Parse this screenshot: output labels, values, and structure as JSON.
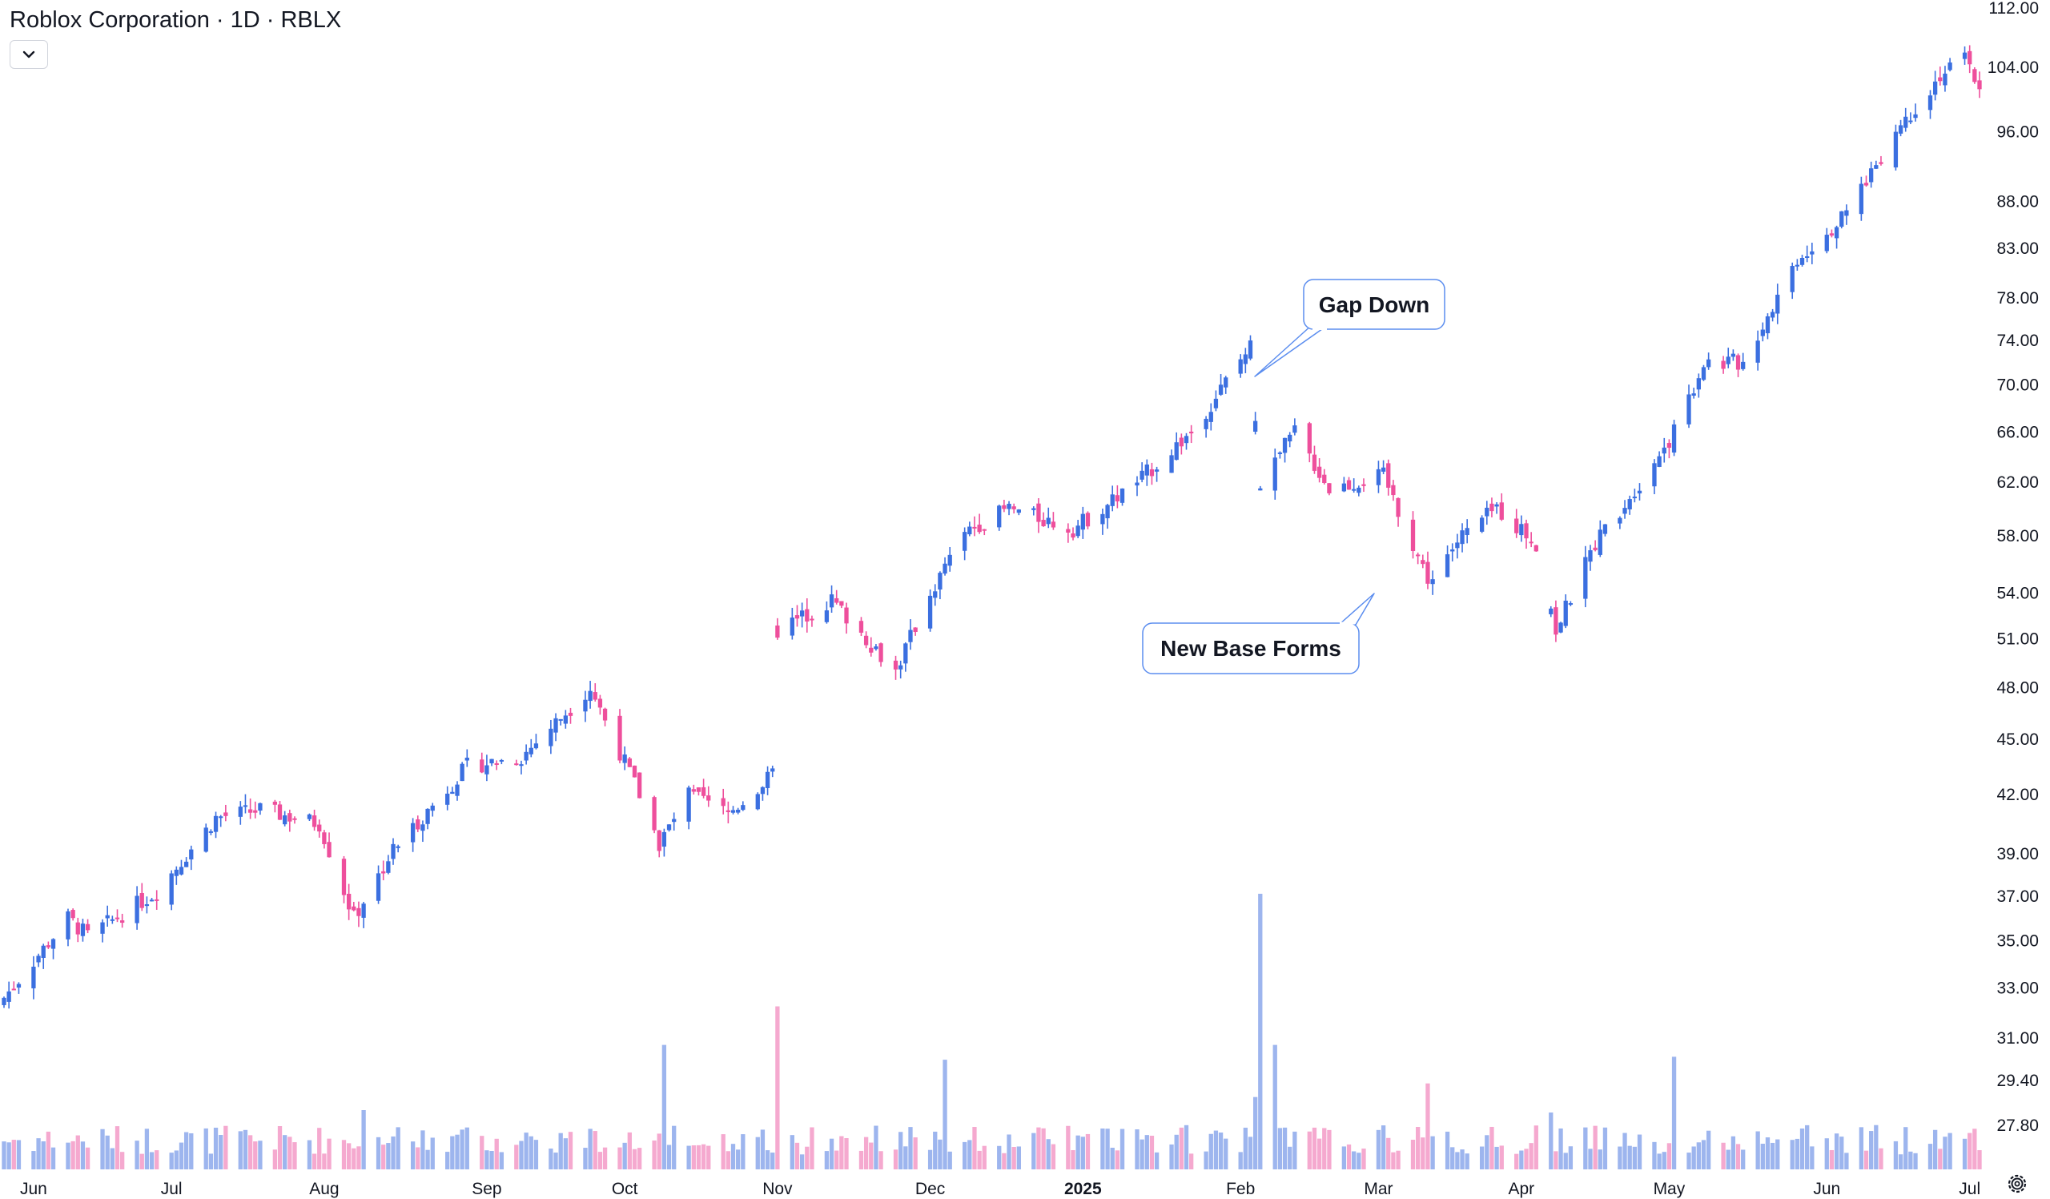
{
  "header": {
    "title": "Roblox Corporation · 1D · RBLX",
    "collapse_icon": "chevron-down-icon",
    "settings_icon": "gear-icon"
  },
  "colors": {
    "up": "#3b6fe0",
    "down": "#ee4f9c",
    "volume_up": "#9db5ee",
    "volume_down": "#f5a9cf",
    "callout_border": "#5b8def",
    "background": "#ffffff"
  },
  "chart_data": {
    "type": "candlestick",
    "symbol": "RBLX",
    "name": "Roblox Corporation",
    "interval": "1D",
    "y_scale": "log",
    "ylim": [
      26.0,
      112.0
    ],
    "y_ticks": [
      "112.00",
      "104.00",
      "96.00",
      "88.00",
      "83.00",
      "78.00",
      "74.00",
      "70.00",
      "66.00",
      "62.00",
      "58.00",
      "54.00",
      "51.00",
      "48.00",
      "45.00",
      "42.00",
      "39.00",
      "37.00",
      "35.00",
      "33.00",
      "31.00",
      "29.40",
      "27.80"
    ],
    "x_ticks": [
      {
        "label": "Jun",
        "date": "2024-06-03",
        "bold": false
      },
      {
        "label": "Jul",
        "date": "2024-07-01",
        "bold": false
      },
      {
        "label": "Aug",
        "date": "2024-08-01",
        "bold": false
      },
      {
        "label": "Sep",
        "date": "2024-09-03",
        "bold": false
      },
      {
        "label": "Oct",
        "date": "2024-10-01",
        "bold": false
      },
      {
        "label": "Nov",
        "date": "2024-11-01",
        "bold": false
      },
      {
        "label": "Dec",
        "date": "2024-12-02",
        "bold": false
      },
      {
        "label": "2025",
        "date": "2025-01-02",
        "bold": true
      },
      {
        "label": "Feb",
        "date": "2025-02-03",
        "bold": false
      },
      {
        "label": "Mar",
        "date": "2025-03-03",
        "bold": false
      },
      {
        "label": "Apr",
        "date": "2025-04-01",
        "bold": false
      },
      {
        "label": "May",
        "date": "2025-05-01",
        "bold": false
      },
      {
        "label": "Jun",
        "date": "2025-06-02",
        "bold": false
      },
      {
        "label": "Jul",
        "date": "2025-07-01",
        "bold": false
      }
    ],
    "price_anchors": [
      [
        "2024-05-28",
        32.6
      ],
      [
        "2024-06-10",
        36.0
      ],
      [
        "2024-06-14",
        35.2
      ],
      [
        "2024-06-28",
        37.2
      ],
      [
        "2024-07-10",
        40.8
      ],
      [
        "2024-07-19",
        41.2
      ],
      [
        "2024-07-31",
        40.5
      ],
      [
        "2024-08-07",
        36.0
      ],
      [
        "2024-08-15",
        39.2
      ],
      [
        "2024-08-30",
        43.5
      ],
      [
        "2024-09-10",
        44.0
      ],
      [
        "2024-09-24",
        48.0
      ],
      [
        "2024-10-04",
        42.0
      ],
      [
        "2024-10-08",
        39.5
      ],
      [
        "2024-10-14",
        42.0
      ],
      [
        "2024-10-22",
        41.0
      ],
      [
        "2024-10-31",
        43.0
      ],
      [
        "2024-11-01",
        51.5
      ],
      [
        "2024-11-12",
        53.5
      ],
      [
        "2024-11-25",
        49.0
      ],
      [
        "2024-12-02",
        54.0
      ],
      [
        "2024-12-10",
        58.5
      ],
      [
        "2024-12-18",
        60.0
      ],
      [
        "2024-12-31",
        58.5
      ],
      [
        "2025-01-13",
        62.0
      ],
      [
        "2025-01-24",
        66.0
      ],
      [
        "2025-02-05",
        73.5
      ],
      [
        "2025-02-07",
        62.0
      ],
      [
        "2025-02-14",
        66.0
      ],
      [
        "2025-02-21",
        61.5
      ],
      [
        "2025-03-04",
        62.5
      ],
      [
        "2025-03-13",
        55.0
      ],
      [
        "2025-03-20",
        58.0
      ],
      [
        "2025-03-27",
        60.0
      ],
      [
        "2025-04-04",
        57.5
      ],
      [
        "2025-04-08",
        51.5
      ],
      [
        "2025-04-16",
        57.5
      ],
      [
        "2025-04-25",
        62.0
      ],
      [
        "2025-05-02",
        66.0
      ],
      [
        "2025-05-08",
        72.0
      ],
      [
        "2025-05-16",
        72.0
      ],
      [
        "2025-05-27",
        82.0
      ],
      [
        "2025-06-05",
        86.0
      ],
      [
        "2025-06-16",
        96.0
      ],
      [
        "2025-06-25",
        103.0
      ],
      [
        "2025-06-30",
        105.0
      ],
      [
        "2025-07-03",
        101.5
      ]
    ],
    "volume_spikes": [
      [
        "2024-08-09",
        0.2
      ],
      [
        "2024-10-09",
        0.42
      ],
      [
        "2024-11-01",
        0.55
      ],
      [
        "2024-12-05",
        0.37
      ],
      [
        "2025-02-07",
        0.93
      ],
      [
        "2025-02-10",
        0.42
      ],
      [
        "2025-03-13",
        0.29
      ],
      [
        "2025-05-02",
        0.38
      ]
    ],
    "annotations": [
      {
        "label": "Gap Down",
        "date": "2025-02-07"
      },
      {
        "label": "New Base Forms",
        "date": "2025-03-12"
      }
    ],
    "grid": false,
    "legend": "none"
  }
}
